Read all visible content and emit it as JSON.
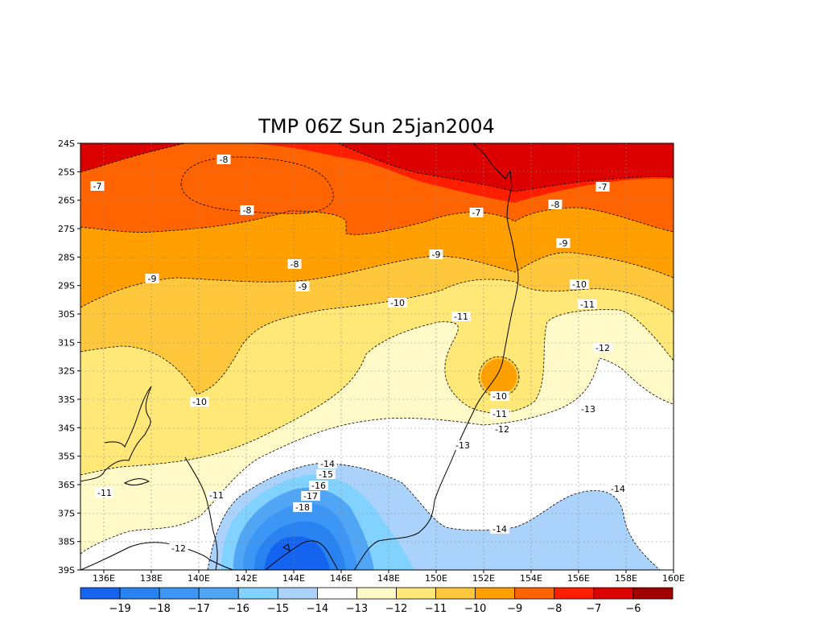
{
  "map": {
    "title": "TMP 06Z Sun 25jan2004",
    "lat_labels": [
      "24S",
      "25S",
      "26S",
      "27S",
      "28S",
      "29S",
      "30S",
      "31S",
      "32S",
      "33S",
      "34S",
      "35S",
      "36S",
      "37S",
      "38S",
      "39S"
    ],
    "lon_labels": [
      "136E",
      "138E",
      "140E",
      "142E",
      "144E",
      "146E",
      "148E",
      "150E",
      "152E",
      "154E",
      "156E",
      "158E",
      "160E"
    ],
    "colorbar_labels": [
      "-19",
      "-18",
      "-17",
      "-16",
      "-15",
      "-14",
      "-13",
      "-12",
      "-11",
      "-10",
      "-9",
      "-8",
      "-7",
      "-6"
    ],
    "colorbar_colors": [
      "#1464f0",
      "#2882f0",
      "#3c96f5",
      "#50a5f5",
      "#82d2ff",
      "#aad2fa",
      "#ffffff",
      "#fffac8",
      "#ffe878",
      "#ffc83c",
      "#ffa000",
      "#ff6400",
      "#ff1e00",
      "#dc0000",
      "#a00000"
    ],
    "contour_labels": [
      {
        "text": "-8"
      },
      {
        "text": "-7"
      },
      {
        "text": "-8"
      },
      {
        "text": "-7"
      },
      {
        "text": "-8"
      },
      {
        "text": "-7"
      },
      {
        "text": "-8"
      },
      {
        "text": "-9"
      },
      {
        "text": "-9"
      },
      {
        "text": "-9"
      },
      {
        "text": "-9"
      },
      {
        "text": "-10"
      },
      {
        "text": "-10"
      },
      {
        "text": "-11"
      },
      {
        "text": "-11"
      },
      {
        "text": "-12"
      },
      {
        "text": "-10"
      },
      {
        "text": "-10"
      },
      {
        "text": "-11"
      },
      {
        "text": "-12"
      },
      {
        "text": "-13"
      },
      {
        "text": "-13"
      },
      {
        "text": "-14"
      },
      {
        "text": "-15"
      },
      {
        "text": "-16"
      },
      {
        "text": "-17"
      },
      {
        "text": "-18"
      },
      {
        "text": "-14"
      },
      {
        "text": "-14"
      },
      {
        "text": "-11"
      },
      {
        "text": "-11"
      },
      {
        "text": "-12"
      }
    ]
  }
}
